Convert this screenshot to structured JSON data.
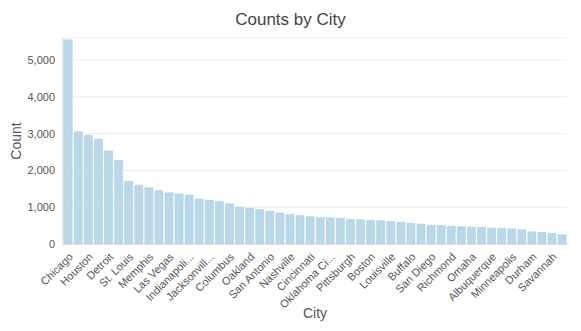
{
  "chart_data": {
    "type": "bar",
    "title": "Counts by City",
    "x_label": "City",
    "y_label": "Count",
    "categories": [
      "Chicago",
      null,
      "Houston",
      null,
      "Detroit",
      null,
      "St. Louis",
      null,
      "Memphis",
      null,
      "Las Vegas",
      null,
      "Indianapoli...",
      null,
      "Jacksonvill...",
      null,
      "Columbus",
      null,
      "Oakland",
      null,
      "San Antonio",
      null,
      "Nashville",
      null,
      "Cincinnati",
      null,
      "Oklahoma Ci...",
      null,
      "Pittsburgh",
      null,
      "Boston",
      null,
      "Louisville",
      null,
      "Buffalo",
      null,
      "San Diego",
      null,
      "Richmond",
      null,
      "Omaha",
      null,
      "Albuquerque",
      null,
      "Minneapolis",
      null,
      "Durham",
      null,
      "Savannah",
      null
    ],
    "values": [
      5550,
      3050,
      2950,
      2850,
      2530,
      2270,
      1700,
      1600,
      1530,
      1450,
      1390,
      1360,
      1330,
      1220,
      1190,
      1150,
      1090,
      1000,
      970,
      940,
      890,
      840,
      800,
      770,
      740,
      720,
      710,
      700,
      670,
      660,
      640,
      630,
      610,
      590,
      560,
      540,
      510,
      500,
      480,
      470,
      460,
      450,
      430,
      420,
      410,
      390,
      330,
      310,
      290,
      250
    ],
    "color": "#b9d9ea",
    "ylim": [
      0,
      5600
    ],
    "yticks": [
      0,
      {
        "value": 1000,
        "label": "1,000"
      },
      {
        "value": 2000,
        "label": "2,000"
      },
      {
        "value": 3000,
        "label": "3,000"
      },
      {
        "value": 4000,
        "label": "4,000"
      },
      {
        "value": 5000,
        "label": "5,000"
      }
    ],
    "grid": true
  }
}
